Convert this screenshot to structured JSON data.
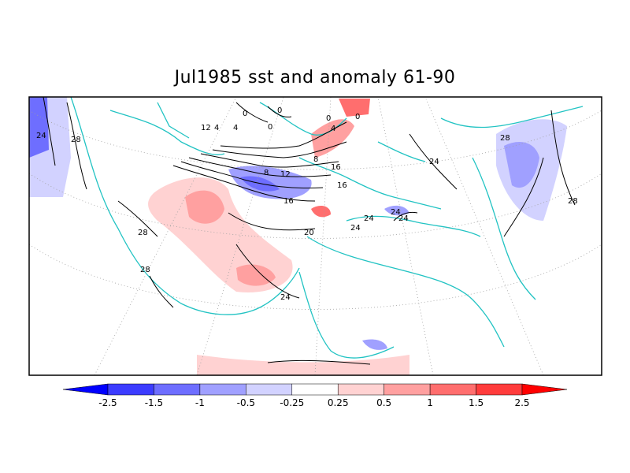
{
  "title": "Jul1985 sst and anomaly 61-90",
  "colorbar": {
    "colors": [
      "#0000ff",
      "#3c3cff",
      "#6e6eff",
      "#a0a0ff",
      "#d2d2ff",
      "#ffffff",
      "#ffd2d2",
      "#ffa0a0",
      "#ff6e6e",
      "#ff3c3c",
      "#ff0000"
    ],
    "ticks": [
      "-2.5",
      "-1.5",
      "-1",
      "-0.5",
      "-0.25",
      "0.25",
      "0.5",
      "1",
      "1.5",
      "2.5"
    ]
  },
  "contour_labels": [
    "24",
    "28",
    "12",
    "4",
    "4",
    "0",
    "0",
    "0",
    "0",
    "0",
    "4",
    "8",
    "8",
    "12",
    "16",
    "16",
    "16",
    "20",
    "24",
    "24",
    "24",
    "24",
    "28",
    "28",
    "28",
    "24",
    "28",
    "24"
  ],
  "colors": {
    "land_outline": "#22c3c3",
    "contour": "#000000",
    "grid": "#a0a0a0",
    "frame": "#000000"
  }
}
